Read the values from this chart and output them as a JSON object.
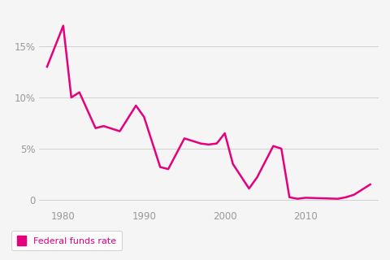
{
  "x": [
    1978,
    1980,
    1981,
    1982,
    1984,
    1985,
    1987,
    1989,
    1990,
    1992,
    1993,
    1995,
    1997,
    1998,
    1999,
    2000,
    2001,
    2003,
    2004,
    2006,
    2007,
    2008,
    2009,
    2010,
    2014,
    2015,
    2016,
    2018
  ],
  "y": [
    13.0,
    17.0,
    10.0,
    10.5,
    7.0,
    7.2,
    6.7,
    9.2,
    8.1,
    3.2,
    3.0,
    6.0,
    5.5,
    5.4,
    5.5,
    6.5,
    3.5,
    1.1,
    2.2,
    5.25,
    5.0,
    0.25,
    0.1,
    0.2,
    0.1,
    0.25,
    0.5,
    1.5
  ],
  "line_color": "#E5007D",
  "line_width": 1.8,
  "bg_color": "#F5F5F5",
  "plot_bg_color": "#F5F5F5",
  "yticks": [
    0,
    5,
    10,
    15
  ],
  "ytick_labels": [
    "0",
    "5%",
    "10%",
    "15%"
  ],
  "xticks": [
    1980,
    1990,
    2000,
    2010
  ],
  "xlim": [
    1977,
    2019
  ],
  "ylim": [
    -0.8,
    18.5
  ],
  "legend_label": "Federal funds rate",
  "legend_text_color": "#E5007D",
  "grid_color": "#D0D0D0",
  "tick_color": "#999999",
  "tick_fontsize": 8.5
}
